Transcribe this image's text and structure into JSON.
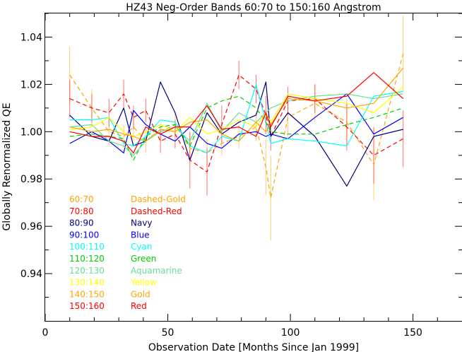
{
  "chart_data": {
    "type": "line",
    "title": "HZ43 Neg-Order Bands 60:70 to 150:160 Angstrom",
    "xlabel": "Observation Date [Months Since Jan 1999]",
    "ylabel": "Globally Renormalized QE",
    "xlim": [
      0,
      170
    ],
    "ylim": [
      0.92,
      1.05
    ],
    "xticks": [
      0,
      50,
      100,
      150
    ],
    "xtick_labels": [
      "0",
      "50",
      "100",
      "150"
    ],
    "yticks": [
      0.94,
      0.96,
      0.98,
      1.0,
      1.02,
      1.04
    ],
    "ytick_labels": [
      "0.94",
      "0.96",
      "0.98",
      "1.00",
      "1.02",
      "1.04"
    ],
    "grid": false,
    "legend_placement": "lower-left",
    "x": [
      10,
      19,
      26,
      32,
      36,
      41,
      47,
      53,
      59,
      66,
      72,
      79,
      86,
      90,
      92,
      99,
      110,
      123,
      134,
      146
    ],
    "series": [
      {
        "range": "60:70",
        "name": "Dashed-Gold",
        "color": "#ffa500",
        "dashed": true,
        "values": [
          1.024,
          1.01,
          1.0,
          0.998,
          1.002,
          0.996,
          1.0,
          1.003,
          0.993,
          0.991,
          0.995,
          0.998,
          1.002,
          0.985,
          0.972,
          1.006,
          1.012,
          1.004,
          0.986,
          1.033
        ],
        "errors": [
          0.012,
          0.008,
          0.006,
          0.005,
          0.006,
          0.005,
          0.004,
          0.005,
          0.006,
          0.006,
          0.005,
          0.005,
          0.006,
          0.012,
          0.018,
          0.008,
          0.008,
          0.01,
          0.015,
          0.016
        ]
      },
      {
        "range": "70:80",
        "name": "Dashed-Red",
        "color": "#ff0000",
        "dashed": true,
        "values": [
          1.014,
          1.01,
          1.008,
          1.016,
          1.006,
          1.009,
          0.996,
          0.999,
          0.988,
          0.983,
          1.003,
          1.024,
          1.018,
          1.007,
          0.998,
          1.013,
          1.014,
          1.002,
          0.99,
          0.997
        ],
        "errors": [
          0.008,
          0.006,
          0.006,
          0.006,
          0.005,
          0.005,
          0.005,
          0.006,
          0.012,
          0.01,
          0.008,
          0.006,
          0.006,
          0.008,
          0.006,
          0.006,
          0.006,
          0.01,
          0.012,
          0.012
        ]
      },
      {
        "range": "80:90",
        "name": "Navy",
        "color": "#000080",
        "dashed": false,
        "values": [
          1.007,
          0.998,
          0.996,
          1.01,
          0.994,
          0.996,
          1.021,
          1.008,
          0.988,
          1.008,
          0.999,
          1.004,
          1.007,
          1.021,
          0.998,
          1.008,
          0.998,
          0.977,
          0.998,
          1.001
        ],
        "errors": []
      },
      {
        "range": "90:100",
        "name": "Blue",
        "color": "#0000ff",
        "dashed": false,
        "values": [
          0.995,
          1.0,
          0.996,
          0.991,
          1.009,
          1.003,
          0.999,
          0.996,
          1.002,
          0.995,
          0.993,
          0.999,
          1.0,
          0.998,
          0.999,
          0.997,
          1.006,
          1.016,
          0.999,
          1.006
        ],
        "errors": []
      },
      {
        "range": "100:110",
        "name": "Cyan",
        "color": "#00ffff",
        "dashed": false,
        "values": [
          1.005,
          1.005,
          1.006,
          0.995,
          0.994,
          0.998,
          1.005,
          1.004,
          0.994,
          0.991,
          0.998,
          0.996,
          1.02,
          1.004,
          0.995,
          0.997,
          0.996,
          0.994,
          1.015,
          1.017
        ],
        "errors": []
      },
      {
        "range": "110:120",
        "name": "Green",
        "color": "#00cc00",
        "dashed": true,
        "values": [
          0.998,
          0.999,
          0.998,
          0.997,
          0.988,
          0.998,
          1.002,
          1.003,
          0.994,
          1.01,
          1.013,
          1.015,
          1.01,
          1.004,
          1.0,
          0.999,
          0.999,
          1.003,
          1.006,
          1.01
        ],
        "errors": []
      },
      {
        "range": "120:130",
        "name": "Aquamarine",
        "color": "#66dd99",
        "dashed": false,
        "values": [
          1.002,
          1.003,
          0.996,
          0.994,
          0.99,
          0.996,
          1.0,
          1.002,
          0.996,
          1.012,
          1.0,
          1.008,
          1.004,
          1.008,
          1.01,
          1.013,
          1.015,
          1.016,
          1.014,
          1.016
        ],
        "errors": []
      },
      {
        "range": "130:140",
        "name": "Yellow",
        "color": "#ffff00",
        "dashed": false,
        "values": [
          1.001,
          1.002,
          1.006,
          1.0,
          0.998,
          1.0,
          1.003,
          1.0,
          1.006,
          0.999,
          1.001,
          1.005,
          1.002,
          1.008,
          1.004,
          1.016,
          1.014,
          1.012,
          1.008,
          1.019
        ],
        "errors": []
      },
      {
        "range": "140:150",
        "name": "Gold",
        "color": "#ffa500",
        "dashed": false,
        "values": [
          1.002,
          1.0,
          1.001,
          0.999,
          0.998,
          0.996,
          1.001,
          1.0,
          1.004,
          1.005,
          0.999,
          0.996,
          1.004,
          1.0,
          1.003,
          1.014,
          1.013,
          1.01,
          1.012,
          1.027
        ],
        "errors": []
      },
      {
        "range": "150:160",
        "name": "Red",
        "color": "#ff0000",
        "dashed": false,
        "values": [
          1.0,
          0.998,
          0.998,
          0.996,
          0.991,
          1.002,
          0.999,
          1.002,
          1.002,
          1.011,
          1.001,
          1.002,
          0.998,
          1.008,
          1.002,
          1.015,
          1.013,
          1.015,
          1.025,
          1.014
        ],
        "errors": []
      }
    ]
  }
}
